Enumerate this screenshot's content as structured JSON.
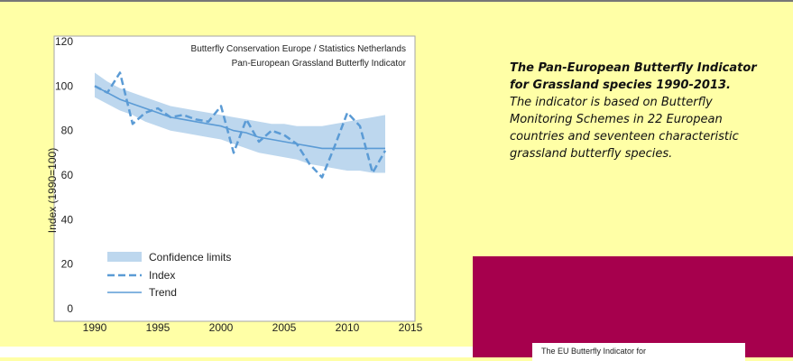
{
  "chart_data": {
    "type": "line",
    "title": "",
    "source_lines": [
      "Butterfly Conservation Europe / Statistics Netherlands",
      "Pan-European Grassland Butterfly Indicator"
    ],
    "xlabel": "",
    "ylabel": "Index (1990=100)",
    "xlim": [
      1990,
      2015
    ],
    "ylim": [
      0,
      120
    ],
    "x_ticks": [
      1990,
      1995,
      2000,
      2005,
      2010,
      2015
    ],
    "y_ticks": [
      0,
      20,
      40,
      60,
      80,
      100,
      120
    ],
    "grid": false,
    "legend_position": "bottom-left",
    "legend": [
      "Confidence limits",
      "Index",
      "Trend"
    ],
    "colors": {
      "confidence": "#bdd7ee",
      "index": "#5b9bd5",
      "trend": "#5b9bd5"
    },
    "x": [
      1990,
      1991,
      1992,
      1993,
      1994,
      1995,
      1996,
      1997,
      1998,
      1999,
      2000,
      2001,
      2002,
      2003,
      2004,
      2005,
      2006,
      2007,
      2008,
      2009,
      2010,
      2011,
      2012,
      2013
    ],
    "series": [
      {
        "name": "Index",
        "style": "dashed",
        "values": [
          100,
          97,
          106,
          83,
          88,
          90,
          86,
          87,
          85,
          84,
          91,
          70,
          85,
          75,
          80,
          78,
          74,
          65,
          59,
          73,
          88,
          82,
          61,
          71
        ]
      },
      {
        "name": "Trend",
        "style": "solid",
        "values": [
          100,
          97,
          94,
          92,
          90,
          88,
          86,
          85,
          84,
          83,
          82,
          80,
          79,
          77,
          76,
          75,
          74,
          73,
          72,
          72,
          72,
          72,
          72,
          72
        ]
      },
      {
        "name": "Confidence limits",
        "style": "band",
        "lower": [
          95,
          92,
          89,
          87,
          84,
          82,
          80,
          79,
          78,
          77,
          76,
          74,
          72,
          70,
          69,
          68,
          67,
          65,
          64,
          63,
          62,
          62,
          61,
          61
        ],
        "upper": [
          106,
          102,
          99,
          97,
          95,
          93,
          91,
          90,
          89,
          88,
          87,
          86,
          85,
          84,
          83,
          83,
          82,
          82,
          82,
          83,
          84,
          85,
          86,
          87
        ]
      }
    ]
  },
  "description": {
    "title": "The Pan-European Butterfly Indicator for Grassland species 1990-2013.",
    "body": "The indicator is based on Butterfly Monitoring Schemes in 22 European countries and seventeen characteristic grassland butterfly species."
  },
  "bottom_panel": {
    "card_text": "The EU Butterfly Indicator for"
  }
}
